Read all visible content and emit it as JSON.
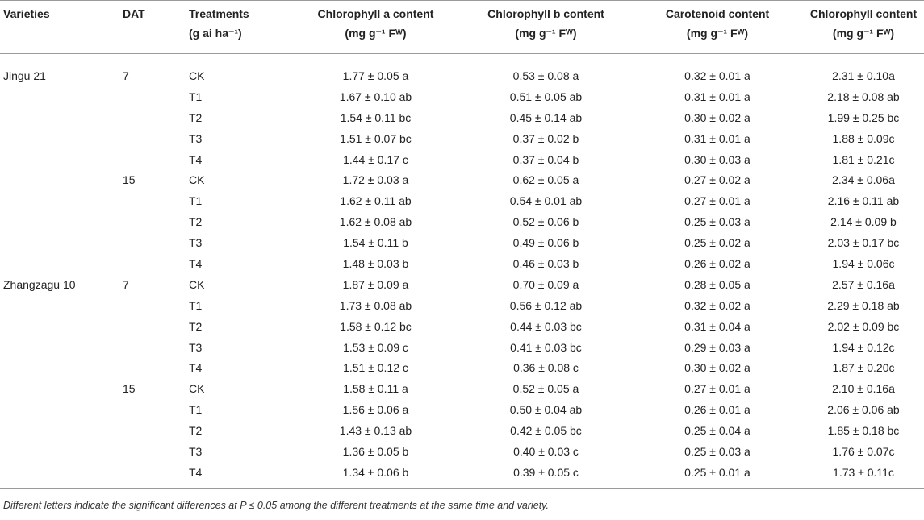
{
  "headers": {
    "varieties": "Varieties",
    "dat": "DAT",
    "treatments": "Treatments",
    "treatments_unit": "(g ai ha⁻¹)",
    "chl_a": "Chlorophyll a content",
    "chl_b": "Chlorophyll b content",
    "carotenoid": "Carotenoid content",
    "chl": "Chlorophyll content",
    "unit": "(mg g⁻¹ Fᵂ)"
  },
  "rows": [
    {
      "variety": "Jingu 21",
      "dat": "7",
      "treatment": "CK",
      "a": "1.77 ± 0.05 a",
      "b": "0.53 ± 0.08 a",
      "car": "0.32 ± 0.01 a",
      "chl": "2.31 ± 0.10a"
    },
    {
      "variety": "",
      "dat": "",
      "treatment": "T1",
      "a": "1.67 ± 0.10 ab",
      "b": "0.51 ± 0.05 ab",
      "car": "0.31 ± 0.01 a",
      "chl": "2.18 ± 0.08 ab"
    },
    {
      "variety": "",
      "dat": "",
      "treatment": "T2",
      "a": "1.54 ± 0.11 bc",
      "b": "0.45 ± 0.14 ab",
      "car": "0.30 ± 0.02 a",
      "chl": "1.99 ± 0.25 bc"
    },
    {
      "variety": "",
      "dat": "",
      "treatment": "T3",
      "a": "1.51 ± 0.07 bc",
      "b": "0.37 ± 0.02 b",
      "car": "0.31 ± 0.01 a",
      "chl": "1.88 ± 0.09c"
    },
    {
      "variety": "",
      "dat": "",
      "treatment": "T4",
      "a": "1.44 ± 0.17 c",
      "b": "0.37 ± 0.04 b",
      "car": "0.30 ± 0.03 a",
      "chl": "1.81 ± 0.21c"
    },
    {
      "variety": "",
      "dat": "15",
      "treatment": "CK",
      "a": "1.72 ± 0.03 a",
      "b": "0.62 ± 0.05 a",
      "car": "0.27 ± 0.02 a",
      "chl": "2.34 ± 0.06a"
    },
    {
      "variety": "",
      "dat": "",
      "treatment": "T1",
      "a": "1.62 ± 0.11 ab",
      "b": "0.54 ± 0.01 ab",
      "car": "0.27 ± 0.01 a",
      "chl": "2.16 ± 0.11 ab"
    },
    {
      "variety": "",
      "dat": "",
      "treatment": "T2",
      "a": "1.62 ± 0.08 ab",
      "b": "0.52 ± 0.06 b",
      "car": "0.25 ± 0.03 a",
      "chl": "2.14 ± 0.09 b"
    },
    {
      "variety": "",
      "dat": "",
      "treatment": "T3",
      "a": "1.54 ± 0.11 b",
      "b": "0.49 ± 0.06 b",
      "car": "0.25 ± 0.02 a",
      "chl": "2.03 ± 0.17 bc"
    },
    {
      "variety": "",
      "dat": "",
      "treatment": "T4",
      "a": "1.48 ± 0.03 b",
      "b": "0.46 ± 0.03 b",
      "car": "0.26 ± 0.02 a",
      "chl": "1.94 ± 0.06c"
    },
    {
      "variety": "Zhangzagu 10",
      "dat": "7",
      "treatment": "CK",
      "a": "1.87 ± 0.09 a",
      "b": "0.70 ± 0.09 a",
      "car": "0.28 ± 0.05 a",
      "chl": "2.57 ± 0.16a"
    },
    {
      "variety": "",
      "dat": "",
      "treatment": "T1",
      "a": "1.73 ± 0.08 ab",
      "b": "0.56 ± 0.12 ab",
      "car": "0.32 ± 0.02 a",
      "chl": "2.29 ± 0.18 ab"
    },
    {
      "variety": "",
      "dat": "",
      "treatment": "T2",
      "a": "1.58 ± 0.12 bc",
      "b": "0.44 ± 0.03 bc",
      "car": "0.31 ± 0.04 a",
      "chl": "2.02 ± 0.09 bc"
    },
    {
      "variety": "",
      "dat": "",
      "treatment": "T3",
      "a": "1.53 ± 0.09 c",
      "b": "0.41 ± 0.03 bc",
      "car": "0.29 ± 0.03 a",
      "chl": "1.94 ± 0.12c"
    },
    {
      "variety": "",
      "dat": "",
      "treatment": "T4",
      "a": "1.51 ± 0.12 c",
      "b": "0.36 ± 0.08 c",
      "car": "0.30 ± 0.02 a",
      "chl": "1.87 ± 0.20c"
    },
    {
      "variety": "",
      "dat": "15",
      "treatment": "CK",
      "a": "1.58 ± 0.11 a",
      "b": "0.52 ± 0.05 a",
      "car": "0.27 ± 0.01 a",
      "chl": "2.10 ± 0.16a"
    },
    {
      "variety": "",
      "dat": "",
      "treatment": "T1",
      "a": "1.56 ± 0.06 a",
      "b": "0.50 ± 0.04 ab",
      "car": "0.26 ± 0.01 a",
      "chl": "2.06 ± 0.06 ab"
    },
    {
      "variety": "",
      "dat": "",
      "treatment": "T2",
      "a": "1.43 ± 0.13 ab",
      "b": "0.42 ± 0.05 bc",
      "car": "0.25 ± 0.04 a",
      "chl": "1.85 ± 0.18 bc"
    },
    {
      "variety": "",
      "dat": "",
      "treatment": "T3",
      "a": "1.36 ± 0.05 b",
      "b": "0.40 ± 0.03 c",
      "car": "0.25 ± 0.03 a",
      "chl": "1.76 ± 0.07c"
    },
    {
      "variety": "",
      "dat": "",
      "treatment": "T4",
      "a": "1.34 ± 0.06 b",
      "b": "0.39 ± 0.05 c",
      "car": "0.25 ± 0.01 a",
      "chl": "1.73 ± 0.11c"
    }
  ],
  "footnote": "Different letters indicate the significant differences at P ≤ 0.05 among the different treatments at the same time and variety."
}
